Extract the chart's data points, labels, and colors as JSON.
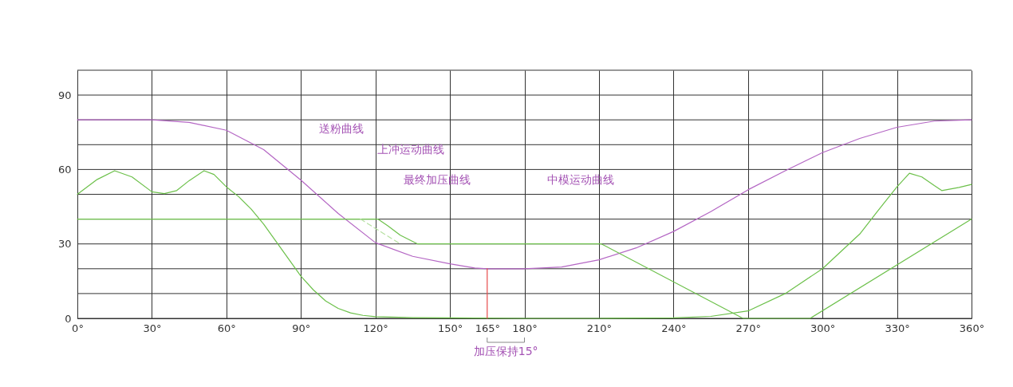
{
  "chart_data": {
    "type": "line",
    "xlim": [
      0,
      360
    ],
    "ylim": [
      0,
      100
    ],
    "xticks": [
      {
        "value": 0,
        "label": "0°"
      },
      {
        "value": 30,
        "label": "30°"
      },
      {
        "value": 60,
        "label": "60°"
      },
      {
        "value": 90,
        "label": "90°"
      },
      {
        "value": 120,
        "label": "120°"
      },
      {
        "value": 150,
        "label": "150°"
      },
      {
        "value": 165,
        "label": "165°"
      },
      {
        "value": 180,
        "label": "180°"
      },
      {
        "value": 210,
        "label": "210°"
      },
      {
        "value": 240,
        "label": "240°"
      },
      {
        "value": 270,
        "label": "270°"
      },
      {
        "value": 300,
        "label": "300°"
      },
      {
        "value": 330,
        "label": "330°"
      },
      {
        "value": 360,
        "label": "360°"
      }
    ],
    "yticks": [
      0,
      {
        "value": 10,
        "label": null
      },
      {
        "value": 20,
        "label": null
      },
      30,
      {
        "value": 40,
        "label": null
      },
      {
        "value": 50,
        "label": null
      },
      60,
      {
        "value": 70,
        "label": null
      },
      {
        "value": 80,
        "label": null
      },
      90,
      {
        "value": 100,
        "label": null
      }
    ],
    "grid": true,
    "line_style": "solid",
    "marker": "none",
    "series": [
      {
        "color": "#b466c4",
        "x": [
          0,
          30,
          45,
          60,
          75,
          90,
          105,
          120,
          135,
          150,
          160,
          165,
          180,
          195,
          210,
          225,
          240,
          255,
          270,
          285,
          300,
          315,
          330,
          345,
          360
        ],
        "values": [
          80,
          80,
          79,
          75.8,
          68,
          55.7,
          42.3,
          30.5,
          25,
          22,
          20.3,
          20,
          20,
          20.7,
          23.6,
          28.4,
          35,
          43,
          51.8,
          59.5,
          66.8,
          72.5,
          77,
          79.5,
          80
        ]
      },
      {
        "color": "#6cc04a",
        "x": [
          0,
          8,
          15,
          22,
          30,
          35,
          40,
          45,
          51,
          55,
          60,
          65,
          70,
          75,
          80,
          85,
          90,
          95,
          100,
          105,
          110,
          115,
          120,
          135,
          150,
          180,
          210,
          240,
          255,
          270,
          285,
          300,
          315,
          322,
          330,
          335,
          340,
          345,
          348,
          355,
          360
        ],
        "values": [
          50,
          56,
          59.5,
          57,
          51,
          50.3,
          51.5,
          55.5,
          59.5,
          58,
          53,
          49,
          44,
          38,
          31,
          24,
          17,
          11.5,
          7,
          4,
          2.2,
          1.2,
          0.7,
          0.3,
          0.2,
          0,
          0,
          0.2,
          0.8,
          3,
          10,
          20,
          34,
          43,
          53,
          58.5,
          57,
          53.5,
          51.5,
          52.8,
          54
        ]
      },
      {
        "color": "#6cc04a",
        "x": [
          0,
          121,
          125,
          130,
          137,
          211,
          268,
          295,
          360
        ],
        "values": [
          40,
          40,
          37.3,
          33.5,
          30,
          30,
          0,
          0,
          40
        ]
      },
      {
        "color": "#b5e0a0",
        "line_style": "dashed",
        "x": [
          114,
          130
        ],
        "values": [
          40,
          30
        ]
      },
      {
        "color": "#e84c4c",
        "x": [
          165,
          165
        ],
        "values": [
          0,
          20
        ]
      }
    ],
    "annotations": [
      "送粉曲线",
      "上冲运动曲线",
      "最终加压曲线",
      "中模运动曲线",
      {
        "text": "加压保持15°",
        "x": 172.5,
        "y": 0
      }
    ]
  }
}
